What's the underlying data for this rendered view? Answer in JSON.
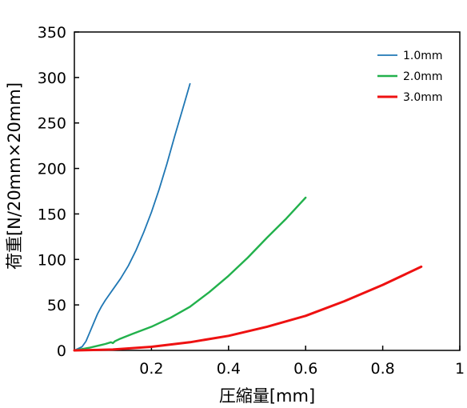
{
  "chart_data": {
    "type": "line",
    "xlabel": "圧縮量[mm]",
    "ylabel": "荷重[N/20mm×20mm]",
    "xlim": [
      0,
      1
    ],
    "ylim": [
      0,
      350
    ],
    "xticks": [
      "0.2",
      "0.4",
      "0.6",
      "0.8",
      "1"
    ],
    "xtick_values": [
      0.2,
      0.4,
      0.6,
      0.8,
      1.0
    ],
    "yticks": [
      "0",
      "50",
      "100",
      "150",
      "200",
      "250",
      "300",
      "350"
    ],
    "ytick_values": [
      0,
      50,
      100,
      150,
      200,
      250,
      300,
      350
    ],
    "grid": false,
    "legend_position": "top-right",
    "series": [
      {
        "name": "1.0mm",
        "color": "#1f77b4",
        "x": [
          0,
          0.02,
          0.03,
          0.04,
          0.05,
          0.06,
          0.07,
          0.08,
          0.09,
          0.1,
          0.12,
          0.14,
          0.16,
          0.18,
          0.2,
          0.22,
          0.24,
          0.26,
          0.28,
          0.3
        ],
        "y": [
          0,
          4,
          10,
          20,
          30,
          40,
          48,
          55,
          61,
          67,
          79,
          93,
          110,
          130,
          152,
          177,
          205,
          235,
          264,
          293
        ]
      },
      {
        "name": "2.0mm",
        "color": "#22b14c",
        "x": [
          0,
          0.02,
          0.04,
          0.06,
          0.08,
          0.095,
          0.1,
          0.105,
          0.12,
          0.15,
          0.2,
          0.25,
          0.3,
          0.35,
          0.4,
          0.45,
          0.5,
          0.55,
          0.6
        ],
        "y": [
          0,
          1.5,
          3,
          5,
          7,
          9,
          8,
          10,
          13,
          18,
          26,
          36,
          48,
          64,
          82,
          102,
          124,
          145,
          168
        ]
      },
      {
        "name": "3.0mm",
        "color": "#ee1111",
        "x": [
          0,
          0.1,
          0.2,
          0.3,
          0.4,
          0.5,
          0.6,
          0.7,
          0.8,
          0.9
        ],
        "y": [
          0,
          1,
          4,
          9,
          16,
          26,
          38,
          54,
          72,
          92
        ]
      }
    ]
  }
}
